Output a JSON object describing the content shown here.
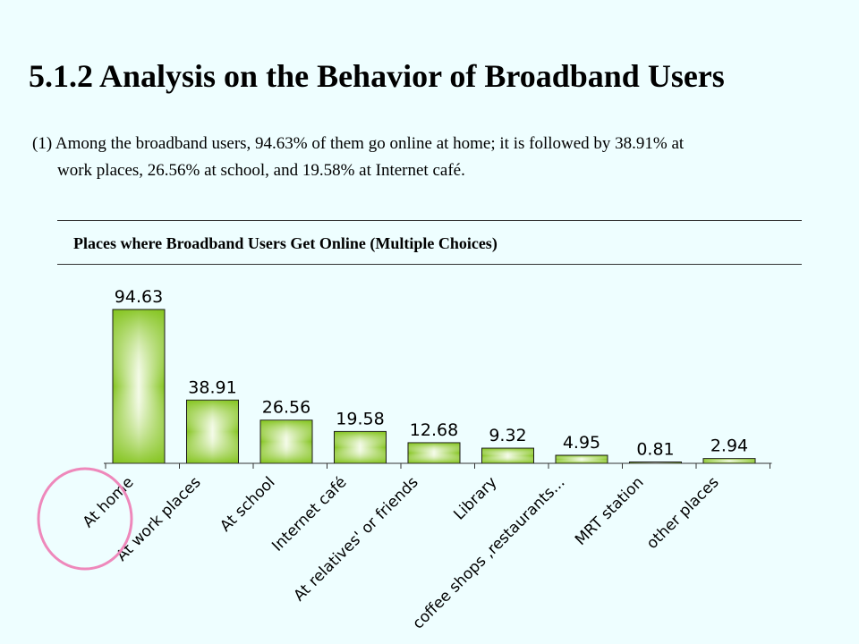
{
  "slide": {
    "title": "5.1.2 Analysis on the Behavior of Broadband Users",
    "paragraph_line1": "(1) Among the broadband users, 94.63% of them go online at home; it is followed by 38.91% at",
    "paragraph_line2": "work places, 26.56% at school, and 19.58% at Internet café."
  },
  "chart_data": {
    "type": "bar",
    "title": "Places where Broadband Users Get Online (Multiple Choices)",
    "categories": [
      "At home",
      "At work places",
      "At school",
      "Internet café",
      "At relatives' or friends'",
      "Library",
      "coffee shops ,restaurants...",
      "MRT station",
      "other places"
    ],
    "values": [
      94.63,
      38.91,
      26.56,
      19.58,
      12.68,
      9.32,
      4.95,
      0.81,
      2.94
    ],
    "value_labels": [
      "94.63",
      "38.91",
      "26.56",
      "19.58",
      "12.68",
      "9.32",
      "4.95",
      "0.81",
      "2.94"
    ],
    "category_labels": [
      "At home",
      "At work places",
      "At school",
      "Internet café",
      "At relatives' or friends",
      "Library",
      "coffee shops ,restaurants...",
      "MRT station",
      "other places"
    ],
    "ylim": [
      0,
      100
    ],
    "grid": false,
    "bar_color": "#8ecb2a",
    "highlight_category": "At home",
    "highlight_color": "#ee88bb"
  }
}
